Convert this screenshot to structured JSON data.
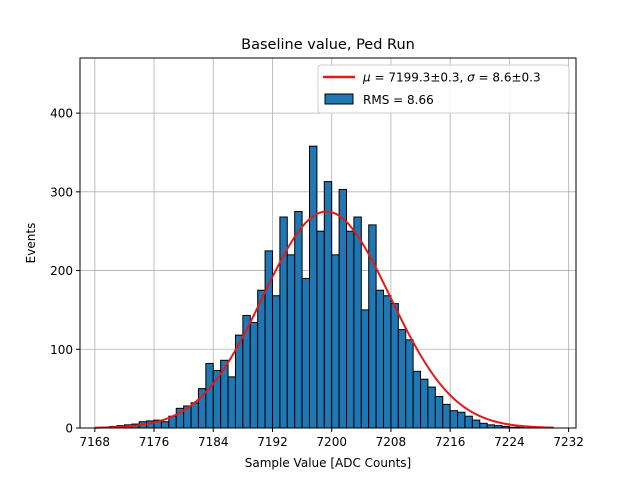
{
  "chart_data": {
    "type": "bar",
    "title": "Baseline value, Ped Run",
    "xlabel": "Sample Value [ADC Counts]",
    "ylabel": "Events",
    "xlim": [
      7166,
      7233
    ],
    "ylim": [
      0,
      470
    ],
    "xticks": [
      7168,
      7176,
      7184,
      7192,
      7200,
      7208,
      7216,
      7224,
      7232
    ],
    "xtick_labels": [
      "7168",
      "7176",
      "7184",
      "7192",
      "7200",
      "7208",
      "7216",
      "7224",
      "7232"
    ],
    "yticks": [
      0,
      100,
      200,
      300,
      400
    ],
    "ytick_labels": [
      "0",
      "100",
      "200",
      "300",
      "400"
    ],
    "grid": true,
    "legend_position": "top-right",
    "bar_color": "#1f77b4",
    "fit_color": "#e31a1c",
    "histogram": {
      "name": "RMS = 8.66",
      "bin_start": 7168,
      "bin_width": 1,
      "values": [
        0,
        1,
        2,
        3,
        4,
        5,
        8,
        9,
        10,
        8,
        15,
        25,
        28,
        32,
        50,
        82,
        73,
        86,
        65,
        118,
        143,
        134,
        175,
        225,
        168,
        268,
        220,
        275,
        190,
        358,
        250,
        313,
        220,
        303,
        250,
        268,
        150,
        258,
        175,
        168,
        158,
        125,
        112,
        72,
        62,
        52,
        40,
        30,
        22,
        20,
        15,
        10,
        6,
        4,
        3,
        2,
        1,
        1
      ]
    },
    "fit": {
      "name": "μ = 7199.3±0.3, σ = 8.6±0.3",
      "mu_label": "μ",
      "sigma_label": "σ",
      "mu": 7199.3,
      "sigma": 8.6,
      "amplitude": 275,
      "x_range": [
        7168,
        7230
      ]
    }
  }
}
